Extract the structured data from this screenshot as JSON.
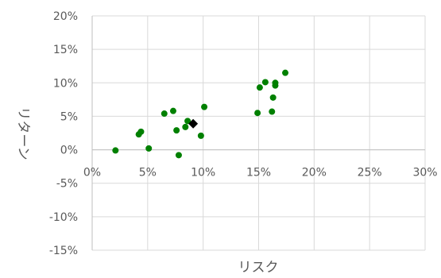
{
  "chart_data": {
    "type": "scatter",
    "xlabel": "リスク",
    "ylabel": "リターン",
    "xlim": [
      0,
      30
    ],
    "ylim": [
      -15,
      20
    ],
    "x_ticks": [
      0,
      5,
      10,
      15,
      20,
      25,
      30
    ],
    "y_ticks": [
      20,
      15,
      10,
      5,
      0,
      -5,
      -10,
      -15
    ],
    "x_tick_labels": [
      "0%",
      "5%",
      "10%",
      "15%",
      "20%",
      "25%",
      "30%"
    ],
    "y_tick_labels": [
      "20%",
      "15%",
      "10%",
      "5%",
      "0%",
      "-5%",
      "-10%",
      "-15%"
    ],
    "grid": true,
    "colors": {
      "points": "#008000",
      "highlight": "#000000",
      "grid": "#d9d9d9",
      "axis": "#bfbfbf"
    },
    "series": [
      {
        "marker": "circle",
        "points": [
          {
            "x": 2.1,
            "y": -0.1
          },
          {
            "x": 4.2,
            "y": 2.3
          },
          {
            "x": 4.4,
            "y": 2.7
          },
          {
            "x": 5.1,
            "y": 0.2
          },
          {
            "x": 6.5,
            "y": 5.4
          },
          {
            "x": 7.3,
            "y": 5.8
          },
          {
            "x": 7.6,
            "y": 2.9
          },
          {
            "x": 7.8,
            "y": -0.8
          },
          {
            "x": 8.4,
            "y": 3.4
          },
          {
            "x": 8.6,
            "y": 4.3
          },
          {
            "x": 9.8,
            "y": 2.1
          },
          {
            "x": 10.1,
            "y": 6.4
          },
          {
            "x": 14.9,
            "y": 5.5
          },
          {
            "x": 15.1,
            "y": 9.3
          },
          {
            "x": 15.6,
            "y": 10.1
          },
          {
            "x": 16.2,
            "y": 5.7
          },
          {
            "x": 16.3,
            "y": 7.8
          },
          {
            "x": 16.5,
            "y": 9.6
          },
          {
            "x": 16.5,
            "y": 10.0
          },
          {
            "x": 17.4,
            "y": 11.5
          }
        ]
      },
      {
        "marker": "diamond",
        "points": [
          {
            "x": 9.1,
            "y": 3.9
          }
        ]
      }
    ]
  }
}
